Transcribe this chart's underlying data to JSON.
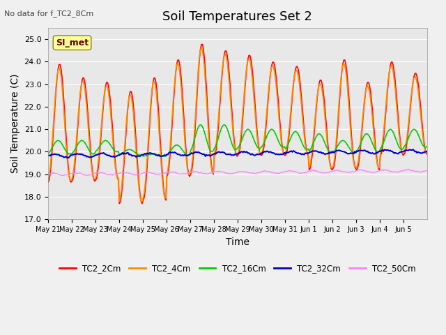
{
  "title": "Soil Temperatures Set 2",
  "ylabel": "Soil Temperature (C)",
  "xlabel": "Time",
  "top_note": "No data for f_TC2_8Cm",
  "annotation": "SI_met",
  "ylim": [
    17.0,
    25.5
  ],
  "yticks": [
    17.0,
    18.0,
    19.0,
    20.0,
    21.0,
    22.0,
    23.0,
    24.0,
    25.0
  ],
  "xtick_labels": [
    "May 21",
    "May 22",
    "May 23",
    "May 24",
    "May 25",
    "May 26",
    "May 27",
    "May 28",
    "May 29",
    "May 30",
    "May 31",
    "Jun 1",
    "Jun 2",
    "Jun 3",
    "Jun 4",
    "Jun 5"
  ],
  "series_colors": [
    "#ff0000",
    "#ff8c00",
    "#00cc00",
    "#0000cc",
    "#ff80ff"
  ],
  "series_labels": [
    "TC2_2Cm",
    "TC2_4Cm",
    "TC2_16Cm",
    "TC2_32Cm",
    "TC2_50Cm"
  ],
  "background_color": "#e8e8e8",
  "title_fontsize": 13,
  "axis_fontsize": 10,
  "tick_fontsize": 8,
  "peak_2cm": [
    23.9,
    23.3,
    23.1,
    22.7,
    23.3,
    24.1,
    24.8,
    24.5,
    24.3,
    24.0,
    23.8,
    23.2,
    24.1,
    23.1,
    24.0,
    23.5
  ],
  "trough_2cm": [
    18.65,
    18.7,
    18.75,
    17.7,
    17.85,
    18.9,
    19.0,
    19.8,
    19.85,
    19.85,
    19.85,
    19.2,
    19.25,
    19.2,
    19.85,
    19.9
  ],
  "peak_16cm": [
    20.5,
    20.5,
    20.5,
    20.1,
    19.9,
    20.3,
    21.2,
    21.2,
    21.0,
    21.0,
    20.9,
    20.8,
    20.5,
    20.8,
    21.0,
    21.0
  ],
  "trough_16cm": [
    19.9,
    19.9,
    20.0,
    19.85,
    19.8,
    19.85,
    20.0,
    20.1,
    20.15,
    20.2,
    20.1,
    20.0,
    19.95,
    20.0,
    20.1,
    20.2
  ]
}
